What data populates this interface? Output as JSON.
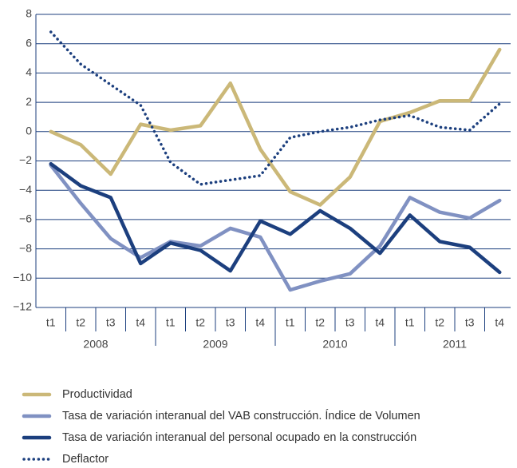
{
  "chart_data": {
    "type": "line",
    "categories": [
      "t1",
      "t2",
      "t3",
      "t4",
      "t1",
      "t2",
      "t3",
      "t4",
      "t1",
      "t2",
      "t3",
      "t4",
      "t1",
      "t2",
      "t3",
      "t4"
    ],
    "category_groups": [
      "2008",
      "2009",
      "2010",
      "2011"
    ],
    "series": [
      {
        "name": "Productividad",
        "color": "#cbb878",
        "style": "solid",
        "values": [
          0,
          -0.9,
          -2.9,
          0.5,
          0.1,
          0.4,
          3.3,
          -1.2,
          -4.1,
          -5.0,
          -3.1,
          0.7,
          1.3,
          2.1,
          2.1,
          5.6
        ]
      },
      {
        "name": "Tasa de variación interanual del VAB construcción. Índice de Volumen",
        "color": "#8091c2",
        "style": "solid",
        "values": [
          -2.3,
          -4.9,
          -7.3,
          -8.6,
          -7.5,
          -7.8,
          -6.6,
          -7.2,
          -10.8,
          -10.2,
          -9.7,
          -7.8,
          -4.5,
          -5.5,
          -5.9,
          -4.7
        ]
      },
      {
        "name": "Tasa de variación interanual del personal ocupado en la construcción",
        "color": "#1c3f7e",
        "style": "solid",
        "values": [
          -2.2,
          -3.7,
          -4.5,
          -9.0,
          -7.6,
          -8.1,
          -9.5,
          -6.1,
          -7.0,
          -5.4,
          -6.6,
          -8.3,
          -5.7,
          -7.5,
          -7.9,
          -9.6
        ]
      },
      {
        "name": "Deflactor",
        "color": "#1c3f7e",
        "style": "dotted",
        "values": [
          6.8,
          4.6,
          3.2,
          1.8,
          -2.1,
          -3.6,
          -3.3,
          -3.0,
          -0.4,
          0,
          0.3,
          0.8,
          1.1,
          0.3,
          0.1,
          1.9
        ]
      }
    ],
    "ylim": [
      -12,
      8
    ],
    "yticks": [
      {
        "value": -12,
        "label": "−12"
      },
      {
        "value": -10,
        "label": "−10"
      },
      {
        "value": -8,
        "label": "−8"
      },
      {
        "value": -6,
        "label": "−6"
      },
      {
        "value": -4,
        "label": "−4"
      },
      {
        "value": -2,
        "label": "−2"
      },
      0,
      2,
      4,
      6,
      8
    ],
    "grid": true,
    "grid_color": "#1c3f7e",
    "legend": "bottom"
  }
}
